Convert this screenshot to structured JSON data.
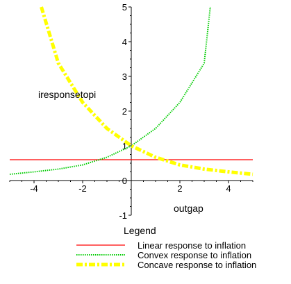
{
  "chart_data": {
    "type": "line",
    "title": "",
    "xlabel": "outgap",
    "ylabel": "iresponsetopi",
    "xlim": [
      -5,
      5
    ],
    "ylim": [
      -1,
      5
    ],
    "x_ticks": [
      -4,
      -2,
      0,
      2,
      4
    ],
    "y_ticks": [
      -1,
      0,
      1,
      2,
      3,
      4,
      5
    ],
    "grid": false,
    "legend_title": "Legend",
    "legend_position": "bottom",
    "series": [
      {
        "name": "Linear response to inflation",
        "color": "#ff0000",
        "style": "solid",
        "x": [
          -5,
          -4,
          -3,
          -2,
          -1,
          0,
          1,
          2,
          3,
          4,
          5
        ],
        "y": [
          0.6,
          0.6,
          0.6,
          0.6,
          0.6,
          0.6,
          0.6,
          0.6,
          0.6,
          0.6,
          0.6
        ]
      },
      {
        "name": "Convex response to inflation",
        "color": "#00cc00",
        "style": "dotted",
        "x": [
          -5,
          -4,
          -3,
          -2,
          -1,
          0,
          1,
          2,
          3,
          3.25
        ],
        "y": [
          0.18,
          0.25,
          0.33,
          0.45,
          0.67,
          1.0,
          1.5,
          2.25,
          3.38,
          5.0
        ]
      },
      {
        "name": "Concave response to inflation",
        "color": "#ffff00",
        "style": "dash-dot",
        "x": [
          -3.7,
          -3,
          -2,
          -1,
          0,
          1,
          2,
          3,
          4,
          5
        ],
        "y": [
          5.0,
          3.38,
          2.25,
          1.5,
          1.0,
          0.67,
          0.45,
          0.33,
          0.25,
          0.18
        ]
      }
    ]
  }
}
